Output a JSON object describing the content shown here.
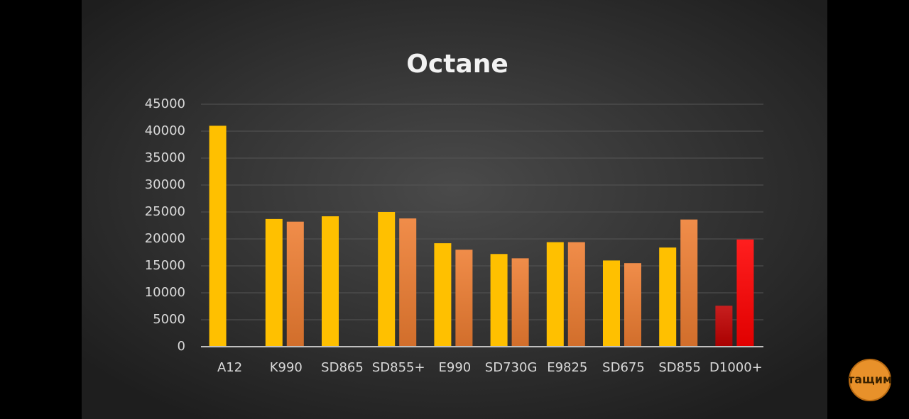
{
  "chart_data": {
    "type": "bar",
    "title": "Octane",
    "categories": [
      "A12",
      "K990",
      "SD865",
      "SD855+",
      "E990",
      "SD730G",
      "E9825",
      "SD675",
      "SD855",
      "D1000+"
    ],
    "series": [
      {
        "colors": [
          "#ffc000",
          "#ffc000",
          "#ffc000",
          "#ffc000",
          "#ffc000",
          "#ffc000",
          "#ffc000",
          "#ffc000",
          "#ffc000",
          "#c00000"
        ],
        "values": [
          41000,
          23700,
          24200,
          25000,
          19200,
          17200,
          19400,
          16000,
          18400,
          7600
        ]
      },
      {
        "colors": [
          "#ee7d31",
          "#ee7d31",
          "#ee7d31",
          "#ee7d31",
          "#ee7d31",
          "#ee7d31",
          "#ee7d31",
          "#ee7d31",
          "#ee7d31",
          "#ff0000"
        ],
        "values": [
          null,
          23200,
          null,
          23800,
          18000,
          16400,
          19400,
          15500,
          23600,
          19900
        ]
      }
    ],
    "ylim": [
      0,
      45000
    ],
    "yticks": [
      0,
      5000,
      10000,
      15000,
      20000,
      25000,
      30000,
      35000,
      40000,
      45000
    ],
    "grid": true
  },
  "watermark": "тащим"
}
